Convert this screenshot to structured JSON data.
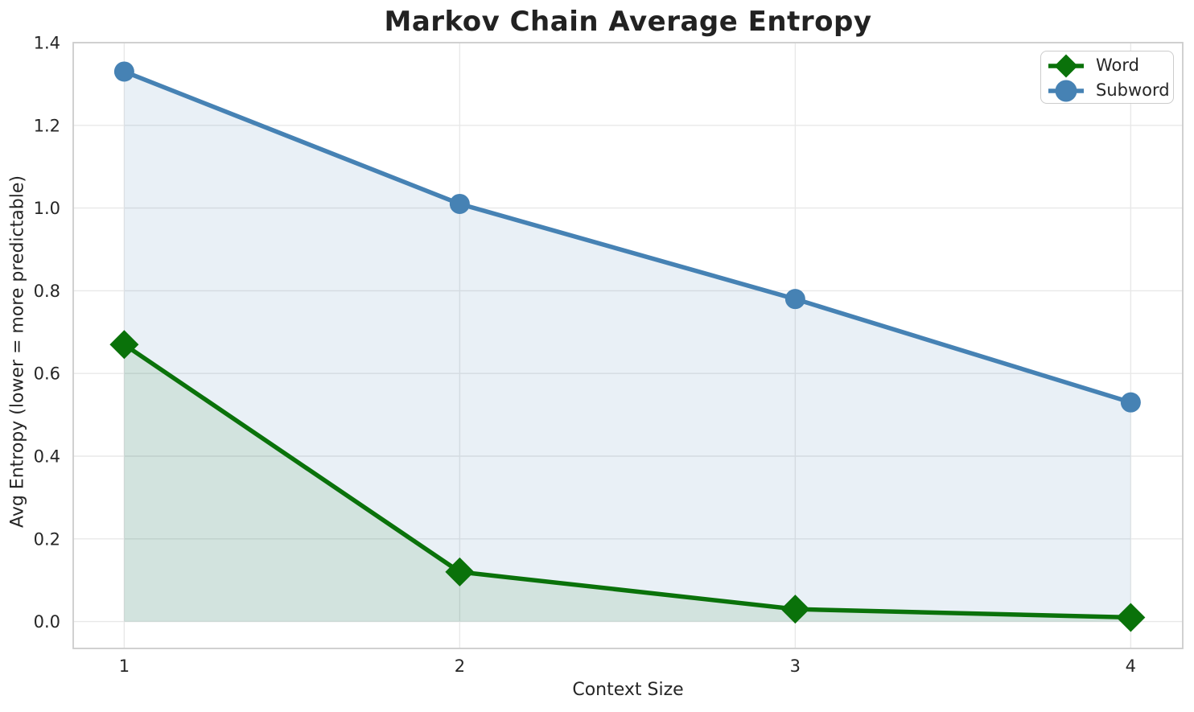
{
  "chart_data": {
    "type": "line",
    "title": "Markov Chain Average Entropy",
    "xlabel": "Context Size",
    "ylabel": "Avg Entropy (lower = more predictable)",
    "x": [
      1,
      2,
      3,
      4
    ],
    "series": [
      {
        "name": "Word",
        "values": [
          0.67,
          0.12,
          0.03,
          0.01
        ],
        "color": "#0a720a",
        "marker": "diamond",
        "fill_opacity": 0.1
      },
      {
        "name": "Subword",
        "values": [
          1.33,
          1.01,
          0.78,
          0.53
        ],
        "color": "#4682b4",
        "marker": "circle",
        "fill_opacity": 0.12
      }
    ],
    "xticks": [
      1,
      2,
      3,
      4
    ],
    "yticks": [
      0.0,
      0.2,
      0.4,
      0.6,
      0.8,
      1.0,
      1.2,
      1.4
    ],
    "xlim": [
      0.848,
      4.155
    ],
    "ylim": [
      -0.065,
      1.4
    ],
    "grid": true,
    "area_fill_to_zero": true,
    "legend_position": "upper right",
    "style": {
      "grid_color": "#e8e8e8",
      "spine_color": "#cccccc",
      "text_color": "#262626",
      "line_width": 5.5,
      "tick_fontsize": 21
    }
  }
}
